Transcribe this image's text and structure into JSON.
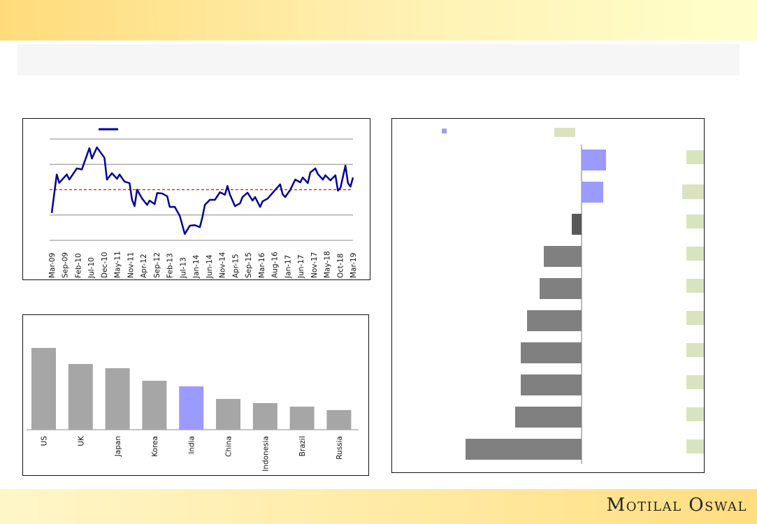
{
  "brand": {
    "logo": "Motilal Oswal"
  },
  "colors": {
    "line": "#00009a",
    "average": "#ff0000",
    "highlight": "#9b9bff",
    "bar": "#a6a6a6",
    "negative": "#808080",
    "negative_dark": "#595959",
    "label_box": "#d9e4bf"
  },
  "chart_data": [
    {
      "type": "line",
      "x_ticks": [
        "Mar-09",
        "Sep-09",
        "Feb-10",
        "Jul-10",
        "Dec-10",
        "May-11",
        "Nov-11",
        "Apr-12",
        "Sep-12",
        "Feb-13",
        "Jul-13",
        "Jan-14",
        "Jun-14",
        "Nov-14",
        "Apr-15",
        "Sep-15",
        "Mar-16",
        "Aug-16",
        "Jan-17",
        "Jun-17",
        "Nov-17",
        "May-18",
        "Oct-18",
        "Mar-19"
      ],
      "ylim": [
        0,
        4
      ],
      "grid": true,
      "average": 2.0,
      "series": [
        {
          "name": "",
          "x": [
            0,
            2,
            3,
            6,
            7,
            10,
            12,
            15,
            16,
            18,
            21,
            22,
            24,
            26,
            27,
            29,
            31,
            32,
            33,
            34,
            36,
            38,
            39,
            41,
            42,
            44,
            46,
            47,
            49,
            51,
            53,
            55,
            57,
            59,
            60,
            61,
            63,
            65,
            67,
            69,
            70,
            71,
            73,
            75,
            76,
            78,
            80,
            81,
            83,
            84,
            86,
            89,
            91,
            92,
            93,
            95,
            97,
            99,
            100,
            102,
            103,
            105,
            106,
            108,
            109,
            111,
            113,
            114,
            115,
            117,
            118,
            119,
            120
          ],
          "y": [
            1.08,
            2.6,
            2.27,
            2.6,
            2.4,
            2.84,
            2.8,
            3.64,
            3.23,
            3.67,
            3.26,
            2.4,
            2.65,
            2.43,
            2.6,
            2.32,
            2.26,
            1.6,
            1.35,
            2.0,
            1.65,
            1.4,
            1.57,
            1.43,
            1.87,
            1.85,
            1.74,
            1.32,
            1.32,
            0.97,
            0.25,
            0.58,
            0.6,
            0.52,
            0.91,
            1.4,
            1.6,
            1.6,
            1.9,
            1.8,
            2.15,
            1.8,
            1.35,
            1.46,
            1.71,
            1.88,
            1.57,
            1.71,
            1.32,
            1.54,
            1.65,
            1.99,
            2.21,
            1.82,
            1.71,
            1.99,
            2.4,
            2.29,
            2.48,
            2.26,
            2.68,
            2.84,
            2.62,
            2.4,
            2.57,
            2.37,
            2.57,
            1.96,
            2.07,
            2.95,
            2.26,
            2.12,
            2.48
          ]
        }
      ]
    },
    {
      "type": "bar",
      "categories": [
        "US",
        "UK",
        "Japan",
        "Korea",
        "India",
        "China",
        "Indonesia",
        "Brazil",
        "Russia"
      ],
      "values": [
        117,
        94,
        88,
        70,
        62,
        44,
        38,
        33,
        28
      ],
      "highlight": "India"
    },
    {
      "type": "bar",
      "orientation": "horizontal",
      "values": [
        35,
        31,
        -14,
        -54,
        -60,
        -78,
        -87,
        -87,
        -95,
        -166
      ],
      "xlim": [
        -166,
        35
      ]
    }
  ]
}
